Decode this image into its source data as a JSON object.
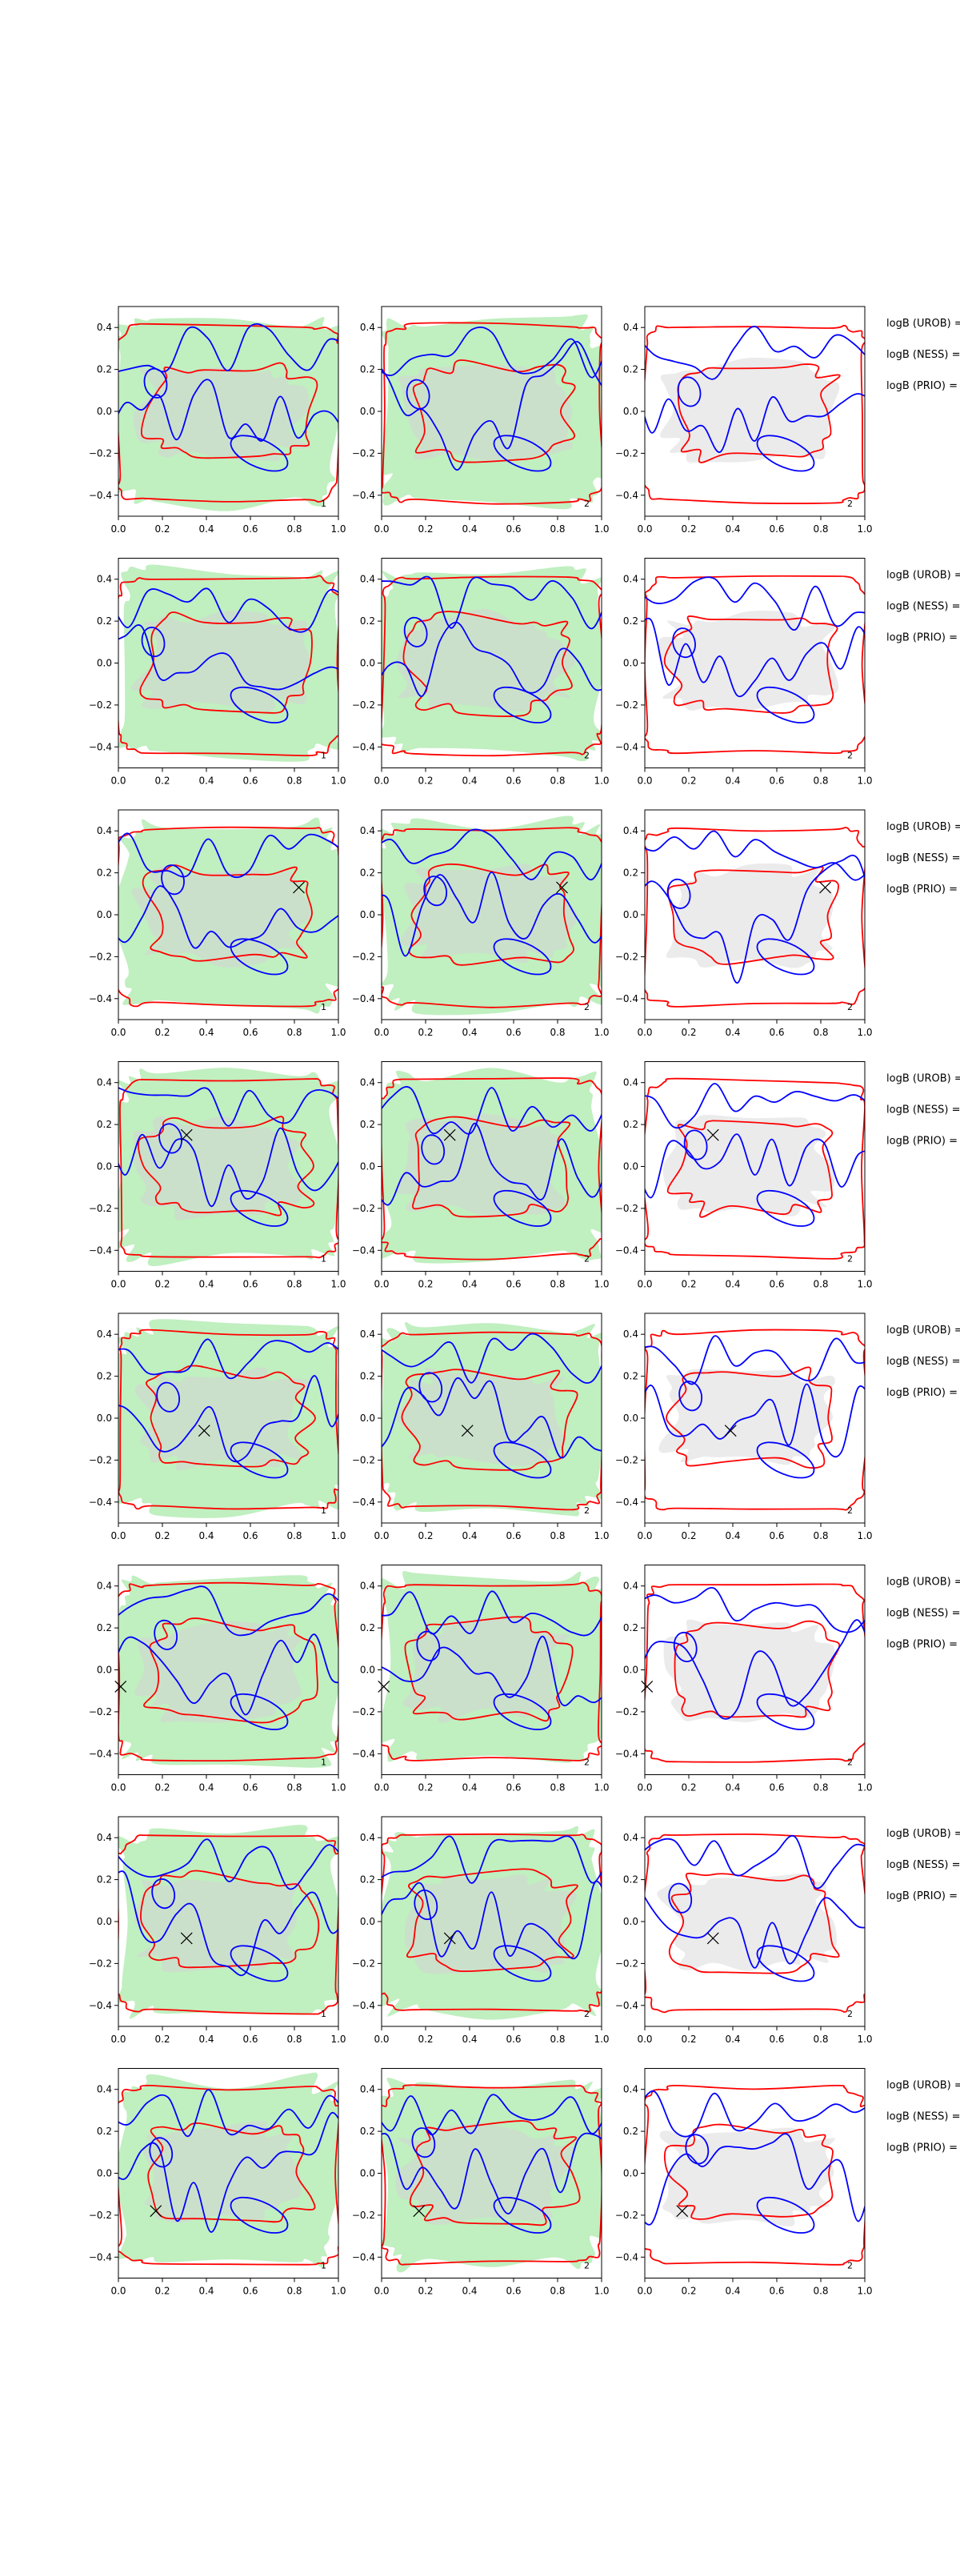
{
  "colors": {
    "green_fill": "#b5ecb5",
    "gray_fill": "#d3d3d3",
    "red": "#ff0000",
    "blue": "#0000ff",
    "axes": "#000000"
  },
  "legend_labels": [
    "logB (UROB) =",
    "logB (NESS) =",
    "logB (PRIO) ="
  ],
  "chart_data": {
    "type": "contour-grid",
    "rows": 8,
    "cols": 3,
    "xlim": [
      0.0,
      1.0
    ],
    "ylim": [
      -0.5,
      0.5
    ],
    "x_ticks": [
      0.0,
      0.2,
      0.4,
      0.6,
      0.8,
      1.0
    ],
    "x_tick_labels": [
      "0.0",
      "0.2",
      "0.4",
      "0.6",
      "0.8",
      "1.0"
    ],
    "y_ticks": [
      0.4,
      0.2,
      0.0,
      -0.2,
      -0.4
    ],
    "y_tick_labels": [
      "0.4",
      "0.2",
      "0.0",
      "−0.2",
      "−0.4"
    ],
    "panel_labels": [
      "1",
      "2",
      "2"
    ],
    "markers": [
      null,
      null,
      {
        "x": 0.82,
        "y": 0.13
      },
      {
        "x": 0.31,
        "y": 0.15
      },
      {
        "x": 0.39,
        "y": -0.06
      },
      {
        "x": 0.01,
        "y": -0.08
      },
      {
        "x": 0.31,
        "y": -0.08
      },
      {
        "x": 0.17,
        "y": -0.18
      }
    ],
    "legend_labels": [
      "logB (UROB) =",
      "logB (NESS) =",
      "logB (PRIO) ="
    ]
  }
}
